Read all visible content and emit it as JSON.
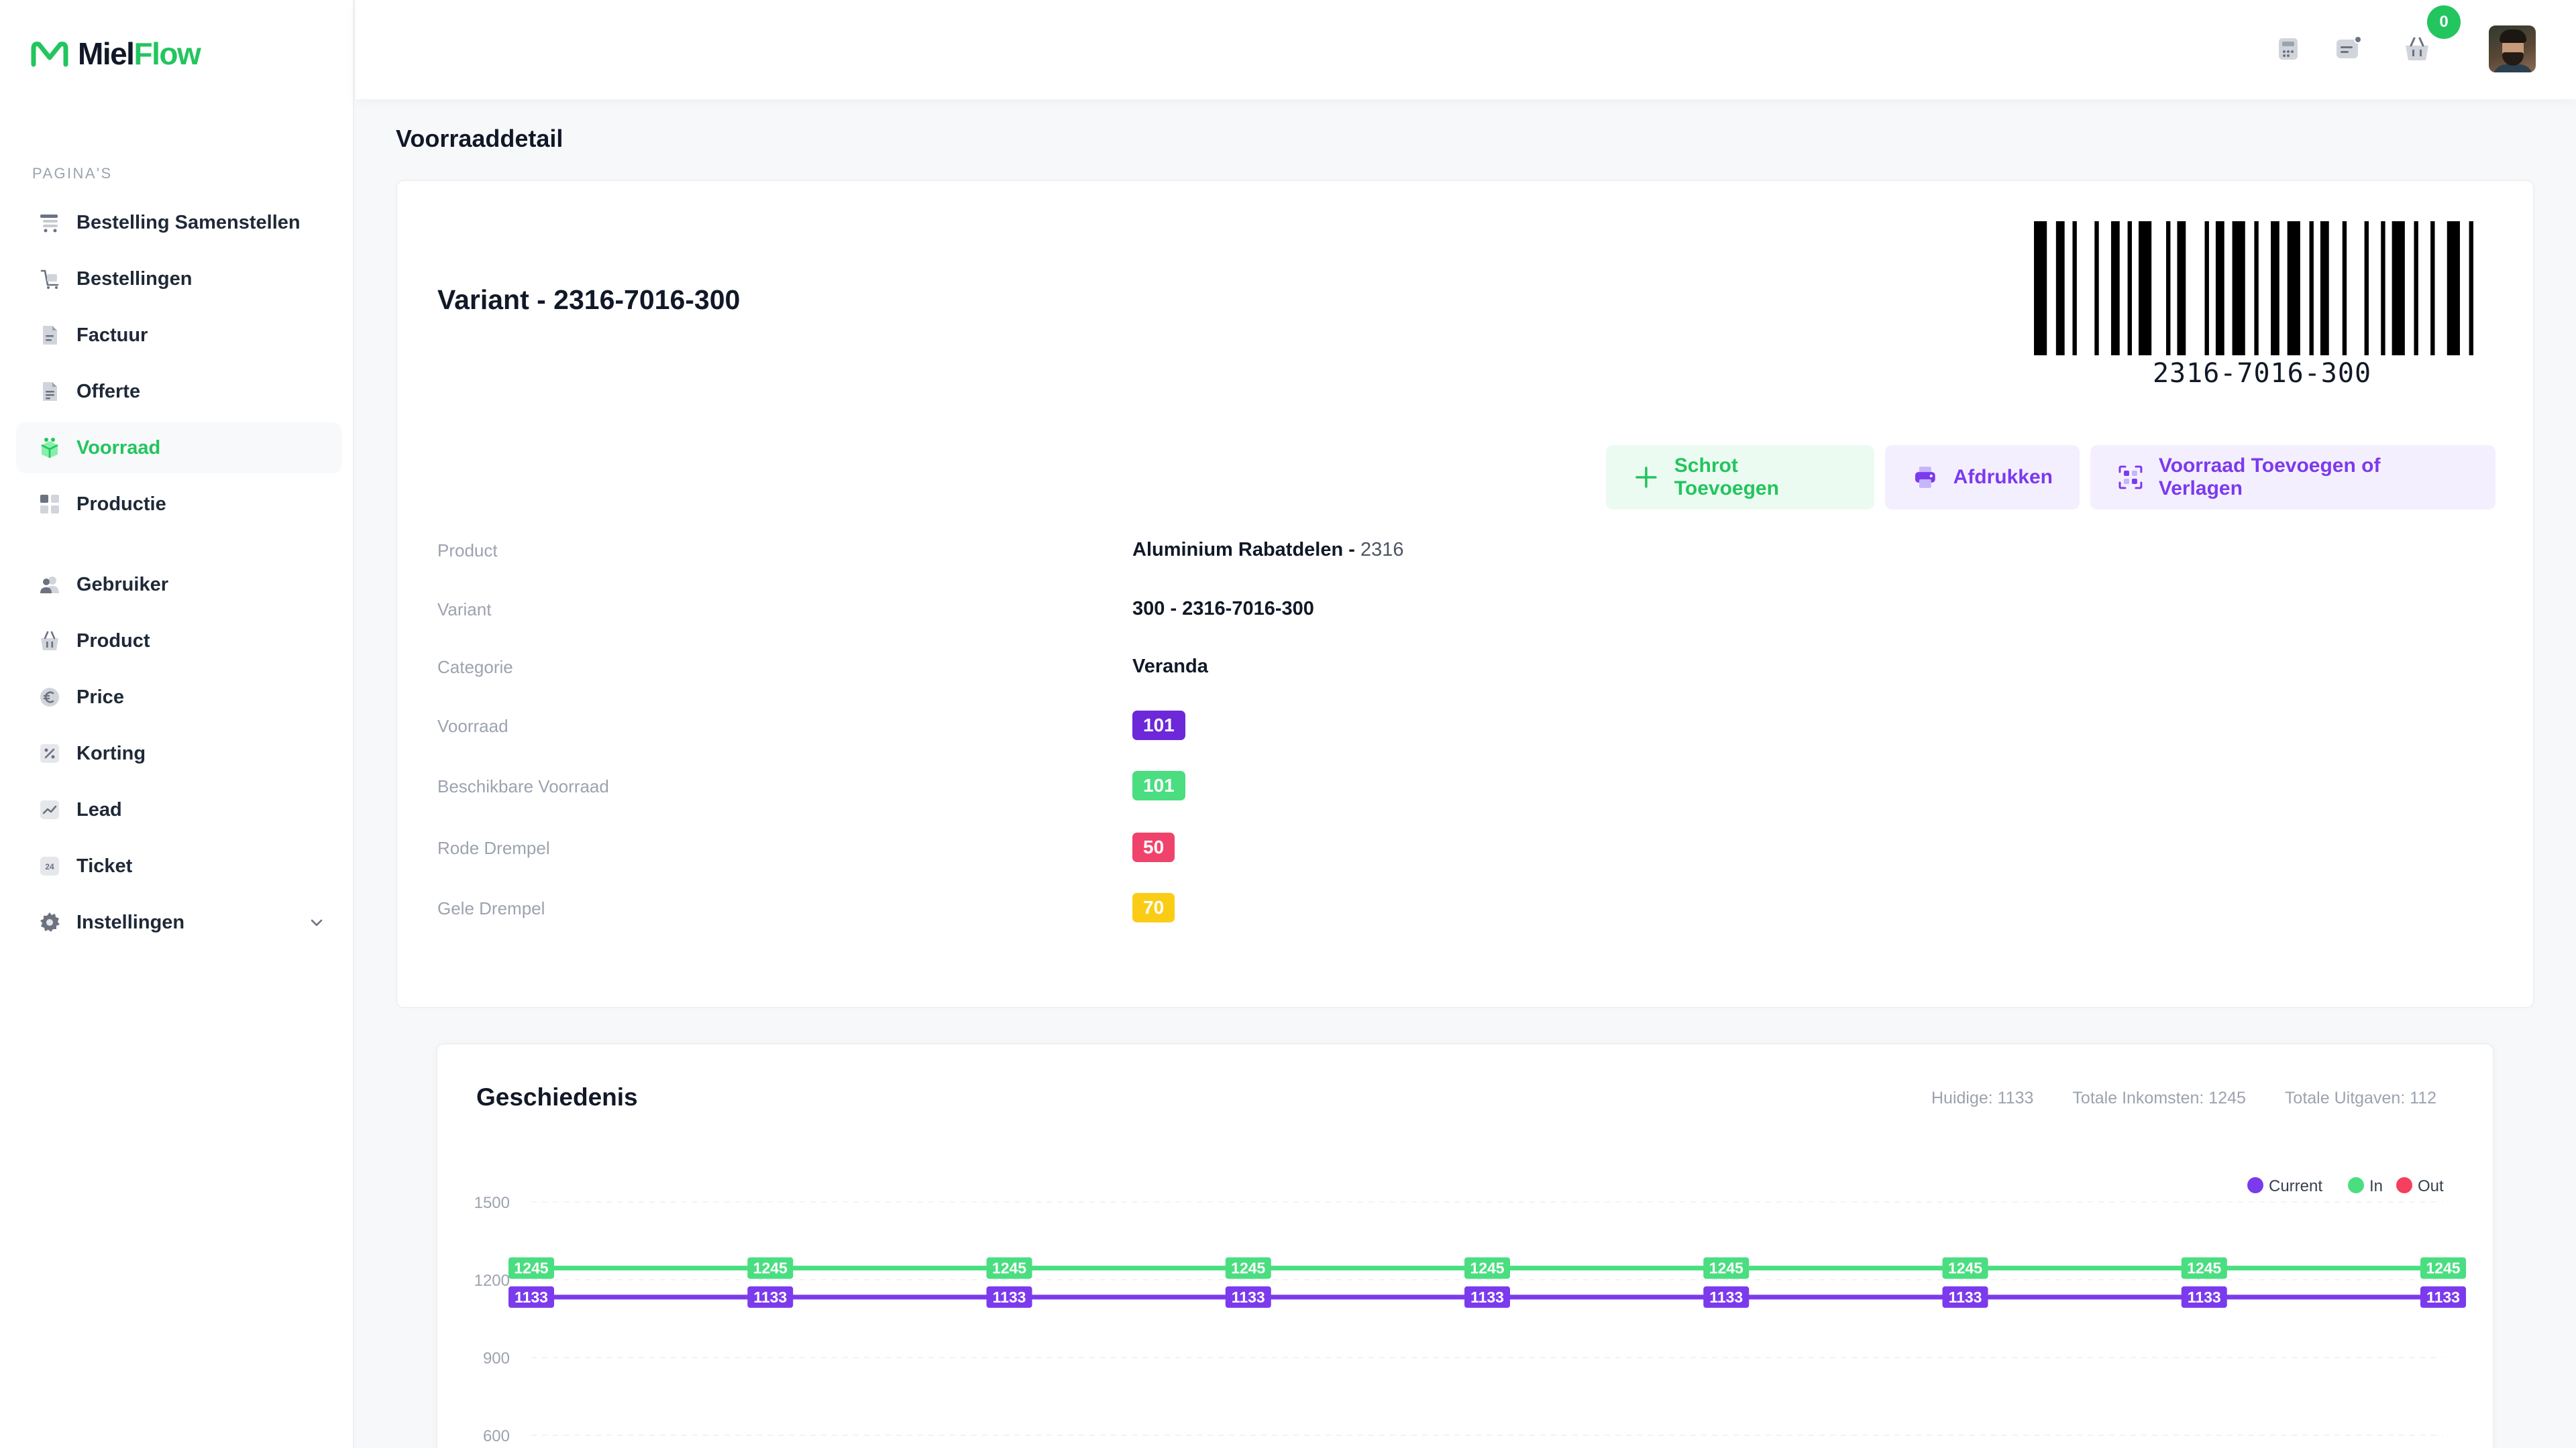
{
  "app": {
    "brand_part1": "Miel",
    "brand_part2": "Flow",
    "accent_color": "#22c55e"
  },
  "sidebar": {
    "section_label": "PAGINA'S",
    "items": [
      {
        "label": "Bestelling Samenstellen",
        "icon": "cart-list-icon"
      },
      {
        "label": "Bestellingen",
        "icon": "orders-icon"
      },
      {
        "label": "Factuur",
        "icon": "invoice-icon"
      },
      {
        "label": "Offerte",
        "icon": "quote-icon"
      },
      {
        "label": "Voorraad",
        "icon": "stock-icon",
        "active": true
      },
      {
        "label": "Productie",
        "icon": "grid-icon"
      },
      {
        "label": "Gebruiker",
        "icon": "users-icon"
      },
      {
        "label": "Product",
        "icon": "basket-icon"
      },
      {
        "label": "Price",
        "icon": "euro-icon"
      },
      {
        "label": "Korting",
        "icon": "percent-icon"
      },
      {
        "label": "Lead",
        "icon": "trend-icon"
      },
      {
        "label": "Ticket",
        "icon": "ticket-24-icon"
      },
      {
        "label": "Instellingen",
        "icon": "gear-icon"
      }
    ]
  },
  "topbar": {
    "cart_count": "0"
  },
  "page": {
    "title": "Voorraaddetail"
  },
  "variant": {
    "title": "Variant - 2316-7016-300",
    "barcode": "2316-7016-300"
  },
  "actions": {
    "scrap": "Schrot Toevoegen",
    "print": "Afdrukken",
    "stock": "Voorraad Toevoegen of Verlagen"
  },
  "details": {
    "product_label": "Product",
    "product_name": "Aluminium Rabatdelen - ",
    "product_code": "2316",
    "variant_label": "Variant",
    "variant_value": "300 - 2316-7016-300",
    "category_label": "Categorie",
    "category_value": "Veranda",
    "stock_label": "Voorraad",
    "stock_value": "101",
    "available_label": "Beschikbare Voorraad",
    "available_value": "101",
    "red_label": "Rode Drempel",
    "red_value": "50",
    "yellow_label": "Gele Drempel",
    "yellow_value": "70"
  },
  "history": {
    "title": "Geschiedenis",
    "current_stat": "Huidige: 1133",
    "income_stat": "Totale Inkomsten: 1245",
    "expense_stat": "Totale Uitgaven: 112"
  },
  "chart_data": {
    "type": "line",
    "y_ticks": [
      600,
      900,
      1200,
      1500
    ],
    "ylim": [
      600,
      1500
    ],
    "grid": true,
    "legend_position": "top-right",
    "series": [
      {
        "name": "Current",
        "color": "#7c3aed",
        "values": [
          1133,
          1133,
          1133,
          1133,
          1133,
          1133,
          1133,
          1133,
          1133
        ]
      },
      {
        "name": "In",
        "color": "#4ade80",
        "values": [
          1245,
          1245,
          1245,
          1245,
          1245,
          1245,
          1245,
          1245,
          1245
        ]
      },
      {
        "name": "Out",
        "color": "#f43f5e",
        "values": []
      }
    ]
  }
}
